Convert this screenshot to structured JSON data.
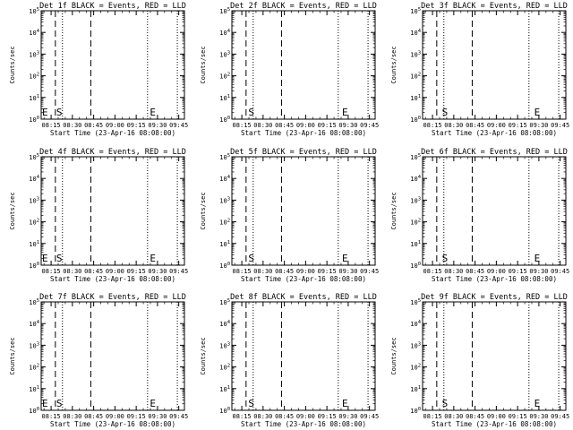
{
  "chart_data": [
    {
      "type": "line",
      "title": "Det 1f BLACK = Events, RED = LLD",
      "xlabel": "Start Time (23-Apr-16 08:08:00)",
      "ylabel": "Counts/sec",
      "x_ticks": [
        "08:15",
        "08:30",
        "08:45",
        "09:00",
        "09:15",
        "09:30",
        "09:45"
      ],
      "y_ticks": [
        "10^0",
        "10^1",
        "10^2",
        "10^3",
        "10^4",
        "10^5"
      ],
      "markers": [
        {
          "time": "08:08",
          "label": "E"
        },
        {
          "time": "08:18",
          "label": "S"
        },
        {
          "time": "09:24",
          "label": "E"
        }
      ],
      "series": []
    },
    {
      "type": "line",
      "title": "Det 2f BLACK = Events, RED = LLD",
      "xlabel": "Start Time (23-Apr-16 08:08:00)",
      "ylabel": "Counts/sec",
      "x_ticks": [
        "08:15",
        "08:30",
        "08:45",
        "09:00",
        "09:15",
        "09:30",
        "09:45"
      ],
      "y_ticks": [
        "10^0",
        "10^1",
        "10^2",
        "10^3",
        "10^4",
        "10^5"
      ],
      "markers": [
        {
          "time": "08:19",
          "label": "S"
        },
        {
          "time": "09:25",
          "label": "E"
        }
      ],
      "series": []
    },
    {
      "type": "line",
      "title": "Det 3f BLACK = Events, RED = LLD",
      "xlabel": "Start Time (23-Apr-16 08:08:00)",
      "ylabel": "Counts/sec",
      "x_ticks": [
        "08:15",
        "08:30",
        "08:45",
        "09:00",
        "09:15",
        "09:30",
        "09:45"
      ],
      "y_ticks": [
        "10^0",
        "10^1",
        "10^2",
        "10^3",
        "10^4",
        "10^5"
      ],
      "markers": [
        {
          "time": "08:21",
          "label": "S"
        },
        {
          "time": "09:26",
          "label": "E"
        }
      ],
      "series": []
    },
    {
      "type": "line",
      "title": "Det 4f BLACK = Events, RED = LLD",
      "xlabel": "Start Time (23-Apr-16 08:08:00)",
      "ylabel": "Counts/sec",
      "x_ticks": [
        "08:15",
        "08:30",
        "08:45",
        "09:00",
        "09:15",
        "09:30",
        "09:45"
      ],
      "y_ticks": [
        "10^0",
        "10^1",
        "10^2",
        "10^3",
        "10^4",
        "10^5"
      ],
      "markers": [
        {
          "time": "08:08",
          "label": "E"
        },
        {
          "time": "08:18",
          "label": "S"
        },
        {
          "time": "09:24",
          "label": "E"
        }
      ],
      "series": []
    },
    {
      "type": "line",
      "title": "Det 5f BLACK = Events, RED = LLD",
      "xlabel": "Start Time (23-Apr-16 08:08:00)",
      "ylabel": "Counts/sec",
      "x_ticks": [
        "08:15",
        "08:30",
        "08:45",
        "09:00",
        "09:15",
        "09:30",
        "09:45"
      ],
      "y_ticks": [
        "10^0",
        "10^1",
        "10^2",
        "10^3",
        "10^4",
        "10^5"
      ],
      "markers": [
        {
          "time": "08:19",
          "label": "S"
        },
        {
          "time": "09:25",
          "label": "E"
        }
      ],
      "series": []
    },
    {
      "type": "line",
      "title": "Det 6f BLACK = Events, RED = LLD",
      "xlabel": "Start Time (23-Apr-16 08:08:00)",
      "ylabel": "Counts/sec",
      "x_ticks": [
        "08:15",
        "08:30",
        "08:45",
        "09:00",
        "09:15",
        "09:30",
        "09:45"
      ],
      "y_ticks": [
        "10^0",
        "10^1",
        "10^2",
        "10^3",
        "10^4",
        "10^5"
      ],
      "markers": [
        {
          "time": "08:21",
          "label": "S"
        },
        {
          "time": "09:26",
          "label": "E"
        }
      ],
      "series": []
    },
    {
      "type": "line",
      "title": "Det 7f BLACK = Events, RED = LLD",
      "xlabel": "Start Time (23-Apr-16 08:08:00)",
      "ylabel": "Counts/sec",
      "x_ticks": [
        "08:15",
        "08:30",
        "08:45",
        "09:00",
        "09:15",
        "09:30",
        "09:45"
      ],
      "y_ticks": [
        "10^0",
        "10^1",
        "10^2",
        "10^3",
        "10^4",
        "10^5"
      ],
      "markers": [
        {
          "time": "08:08",
          "label": "E"
        },
        {
          "time": "08:18",
          "label": "S"
        },
        {
          "time": "09:24",
          "label": "E"
        }
      ],
      "series": []
    },
    {
      "type": "line",
      "title": "Det 8f BLACK = Events, RED = LLD",
      "xlabel": "Start Time (23-Apr-16 08:08:00)",
      "ylabel": "Counts/sec",
      "x_ticks": [
        "08:15",
        "08:30",
        "08:45",
        "09:00",
        "09:15",
        "09:30",
        "09:45"
      ],
      "y_ticks": [
        "10^0",
        "10^1",
        "10^2",
        "10^3",
        "10^4",
        "10^5"
      ],
      "markers": [
        {
          "time": "08:19",
          "label": "S"
        },
        {
          "time": "09:25",
          "label": "E"
        }
      ],
      "series": []
    },
    {
      "type": "line",
      "title": "Det 9f BLACK = Events, RED = LLD",
      "xlabel": "Start Time (23-Apr-16 08:08:00)",
      "ylabel": "Counts/sec",
      "x_ticks": [
        "08:15",
        "08:30",
        "08:45",
        "09:00",
        "09:15",
        "09:30",
        "09:45"
      ],
      "y_ticks": [
        "10^0",
        "10^1",
        "10^2",
        "10^3",
        "10^4",
        "10^5"
      ],
      "markers": [
        {
          "time": "08:21",
          "label": "S"
        },
        {
          "time": "09:26",
          "label": "E"
        }
      ],
      "series": []
    }
  ],
  "shared": {
    "x_range": [
      "08:08",
      "09:49"
    ],
    "y_log": true,
    "y_range": [
      1,
      100000
    ],
    "vlines_dashed": [
      "08:18",
      "08:43"
    ],
    "vlines_dotted": [
      "08:23",
      "09:23",
      "09:44"
    ]
  }
}
